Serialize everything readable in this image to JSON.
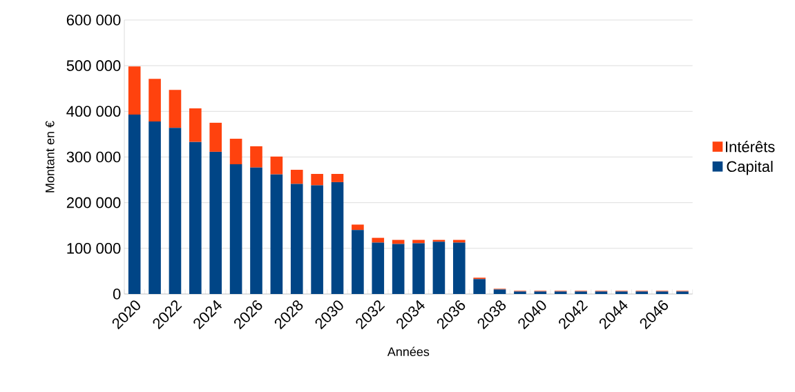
{
  "chart_data": {
    "type": "bar",
    "stacked": true,
    "xlabel": "Années",
    "ylabel": "Montant en €",
    "categories": [
      "2020",
      null,
      "2022",
      null,
      "2024",
      null,
      "2026",
      null,
      "2028",
      null,
      "2030",
      null,
      "2032",
      null,
      "2034",
      null,
      "2036",
      null,
      "2038",
      null,
      "2040",
      null,
      "2042",
      null,
      "2044",
      null,
      "2046",
      null
    ],
    "series": [
      {
        "name": "Capital",
        "color": "#004586",
        "values": [
          393000,
          378000,
          364000,
          333000,
          311500,
          284000,
          277000,
          262000,
          241000,
          238000,
          245000,
          140000,
          112500,
          109500,
          111000,
          114500,
          112500,
          32700,
          10000,
          5500,
          5500,
          5500,
          5500,
          5500,
          5500,
          5500,
          5500,
          5500
        ]
      },
      {
        "name": "Intérêts",
        "color": "#ff420e",
        "values": [
          105500,
          93000,
          83000,
          73500,
          63500,
          56000,
          46500,
          39000,
          31000,
          25000,
          18000,
          12000,
          10500,
          9000,
          7500,
          4000,
          6000,
          3000,
          1500,
          1500,
          1500,
          1500,
          1500,
          1500,
          1500,
          1500,
          1500,
          1500
        ]
      }
    ],
    "ylim": [
      0,
      600000
    ],
    "yticks": [
      {
        "value": 0,
        "label": "0"
      },
      {
        "value": 100000,
        "label": "100 000"
      },
      {
        "value": 200000,
        "label": "200 000"
      },
      {
        "value": 300000,
        "label": "300 000"
      },
      {
        "value": 400000,
        "label": "400 000"
      },
      {
        "value": 500000,
        "label": "500 000"
      },
      {
        "value": 600000,
        "label": "600 000"
      }
    ],
    "grid": "y",
    "legend": "right"
  }
}
